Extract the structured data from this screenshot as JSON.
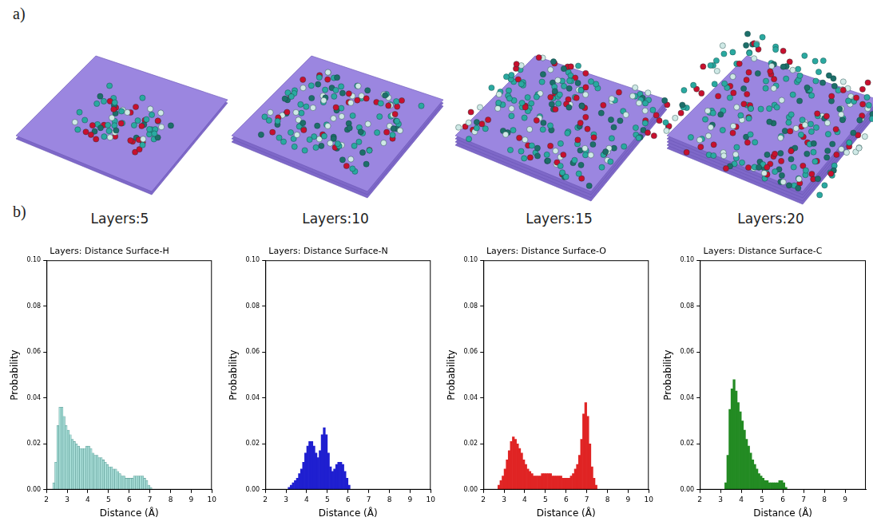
{
  "figure": {
    "panel_a": {
      "letter": "a)",
      "captions": [
        "Layers:5",
        "Layers:10",
        "Layers:15",
        "Layers:20"
      ]
    },
    "panel_b": {
      "letter": "b)"
    }
  },
  "chart_data": [
    {
      "type": "histogram",
      "title": "Layers: Distance Surface-H",
      "x_label": "Distance (Å)",
      "y_label": "Probability",
      "color": "#a6dcd6",
      "grid": false,
      "bins": [
        2.3,
        2.4,
        2.5,
        2.6,
        2.7,
        2.8,
        2.9,
        3.0,
        3.1,
        3.2,
        3.3,
        3.4,
        3.5,
        3.6,
        3.7,
        3.8,
        3.9,
        4.0,
        4.1,
        4.2,
        4.3,
        4.4,
        4.5,
        4.6,
        4.7,
        4.8,
        4.9,
        5.0,
        5.1,
        5.2,
        5.3,
        5.4,
        5.5,
        5.6,
        5.7,
        5.8,
        5.9,
        6.0,
        6.1,
        6.2,
        6.3,
        6.4,
        6.5,
        6.6,
        6.7,
        6.8,
        6.9,
        7.0,
        7.1
      ],
      "values": [
        0.003,
        0.012,
        0.028,
        0.036,
        0.036,
        0.032,
        0.028,
        0.026,
        0.024,
        0.022,
        0.021,
        0.02,
        0.019,
        0.018,
        0.018,
        0.018,
        0.019,
        0.019,
        0.018,
        0.016,
        0.015,
        0.015,
        0.014,
        0.014,
        0.013,
        0.012,
        0.011,
        0.01,
        0.01,
        0.009,
        0.009,
        0.008,
        0.007,
        0.006,
        0.006,
        0.005,
        0.005,
        0.005,
        0.005,
        0.006,
        0.006,
        0.006,
        0.006,
        0.006,
        0.005,
        0.004,
        0.002,
        0.001
      ],
      "xlim": [
        2,
        10
      ],
      "xticks": [
        2,
        3,
        4,
        5,
        6,
        7,
        8,
        9,
        10
      ],
      "ylim": [
        0,
        0.1
      ],
      "yticks": [
        {
          "value": 0,
          "label": "0.00"
        },
        {
          "value": 0.02,
          "label": "0.02"
        },
        {
          "value": 0.04,
          "label": "0.04"
        },
        {
          "value": 0.06,
          "label": "0.06"
        },
        {
          "value": 0.08,
          "label": "0.08"
        },
        {
          "value": 0.1,
          "label": "0.10"
        }
      ]
    },
    {
      "type": "histogram",
      "title": "Layers: Distance Surface-N",
      "x_label": "Distance (Å)",
      "y_label": "Probability",
      "color": "#1f1fd0",
      "grid": false,
      "bins": [
        3.1,
        3.2,
        3.3,
        3.4,
        3.5,
        3.6,
        3.7,
        3.8,
        3.9,
        4.0,
        4.1,
        4.2,
        4.3,
        4.4,
        4.5,
        4.6,
        4.7,
        4.8,
        4.9,
        5.0,
        5.1,
        5.2,
        5.3,
        5.4,
        5.5,
        5.6,
        5.7,
        5.8,
        5.9,
        6.0,
        6.1
      ],
      "values": [
        0.001,
        0.002,
        0.003,
        0.004,
        0.005,
        0.007,
        0.009,
        0.012,
        0.016,
        0.019,
        0.021,
        0.021,
        0.019,
        0.016,
        0.014,
        0.017,
        0.024,
        0.027,
        0.024,
        0.016,
        0.01,
        0.008,
        0.009,
        0.011,
        0.012,
        0.012,
        0.011,
        0.008,
        0.005,
        0.002
      ],
      "xlim": [
        2,
        10
      ],
      "xticks": [
        2,
        3,
        4,
        5,
        6,
        7,
        8,
        9,
        10
      ],
      "ylim": [
        0,
        0.1
      ],
      "yticks": [
        {
          "value": 0,
          "label": "0.00"
        },
        {
          "value": 0.02,
          "label": "0.02"
        },
        {
          "value": 0.04,
          "label": "0.04"
        },
        {
          "value": 0.06,
          "label": "0.06"
        },
        {
          "value": 0.08,
          "label": "0.08"
        },
        {
          "value": 0.1,
          "label": "0.10"
        }
      ]
    },
    {
      "type": "histogram",
      "title": "Layers: Distance Surface-O",
      "x_label": "Distance (Å)",
      "y_label": "Probability",
      "color": "#e02424",
      "grid": false,
      "bins": [
        2.7,
        2.8,
        2.9,
        3.0,
        3.1,
        3.2,
        3.3,
        3.4,
        3.5,
        3.6,
        3.7,
        3.8,
        3.9,
        4.0,
        4.1,
        4.2,
        4.3,
        4.4,
        4.5,
        4.6,
        4.7,
        4.8,
        4.9,
        5.0,
        5.1,
        5.2,
        5.3,
        5.4,
        5.5,
        5.6,
        5.7,
        5.8,
        5.9,
        6.0,
        6.1,
        6.2,
        6.3,
        6.4,
        6.5,
        6.6,
        6.7,
        6.8,
        6.9,
        7.0,
        7.1,
        7.2,
        7.3,
        7.4,
        7.5
      ],
      "values": [
        0.002,
        0.004,
        0.006,
        0.009,
        0.013,
        0.017,
        0.021,
        0.023,
        0.022,
        0.02,
        0.018,
        0.016,
        0.013,
        0.011,
        0.009,
        0.008,
        0.007,
        0.006,
        0.006,
        0.006,
        0.006,
        0.007,
        0.007,
        0.007,
        0.007,
        0.007,
        0.006,
        0.006,
        0.006,
        0.006,
        0.006,
        0.005,
        0.005,
        0.005,
        0.005,
        0.006,
        0.007,
        0.009,
        0.011,
        0.015,
        0.022,
        0.033,
        0.038,
        0.032,
        0.02,
        0.01,
        0.005,
        0.002
      ],
      "xlim": [
        2,
        10
      ],
      "xticks": [
        2,
        3,
        4,
        5,
        6,
        7,
        8,
        9,
        10
      ],
      "ylim": [
        0,
        0.1
      ],
      "yticks": [
        {
          "value": 0,
          "label": "0.00"
        },
        {
          "value": 0.02,
          "label": "0.02"
        },
        {
          "value": 0.04,
          "label": "0.04"
        },
        {
          "value": 0.06,
          "label": "0.06"
        },
        {
          "value": 0.08,
          "label": "0.08"
        },
        {
          "value": 0.1,
          "label": "0.10"
        }
      ]
    },
    {
      "type": "histogram",
      "title": "Layers: Distance Surface-C",
      "x_label": "Distance (Å)",
      "y_label": "Probability",
      "color": "#238b23",
      "grid": false,
      "bins": [
        3.2,
        3.3,
        3.4,
        3.5,
        3.6,
        3.7,
        3.8,
        3.9,
        4.0,
        4.1,
        4.2,
        4.3,
        4.4,
        4.5,
        4.6,
        4.7,
        4.8,
        4.9,
        5.0,
        5.1,
        5.2,
        5.3,
        5.4,
        5.5,
        5.6,
        5.7,
        5.8,
        5.9,
        6.0,
        6.1,
        6.2
      ],
      "values": [
        0.003,
        0.015,
        0.035,
        0.044,
        0.048,
        0.043,
        0.038,
        0.034,
        0.03,
        0.026,
        0.022,
        0.019,
        0.016,
        0.013,
        0.011,
        0.009,
        0.007,
        0.006,
        0.005,
        0.004,
        0.004,
        0.003,
        0.003,
        0.003,
        0.003,
        0.003,
        0.004,
        0.004,
        0.003,
        0.001
      ],
      "xlim": [
        2,
        10
      ],
      "xticks": [
        2,
        3,
        4,
        5,
        6,
        7,
        8,
        9
      ],
      "ylim": [
        0,
        0.1
      ],
      "yticks": [
        {
          "value": 0,
          "label": "0.00"
        },
        {
          "value": 0.02,
          "label": "0.02"
        },
        {
          "value": 0.04,
          "label": "0.04"
        },
        {
          "value": 0.06,
          "label": "0.06"
        },
        {
          "value": 0.08,
          "label": "0.08"
        },
        {
          "value": 0.1,
          "label": "0.10"
        }
      ]
    }
  ]
}
